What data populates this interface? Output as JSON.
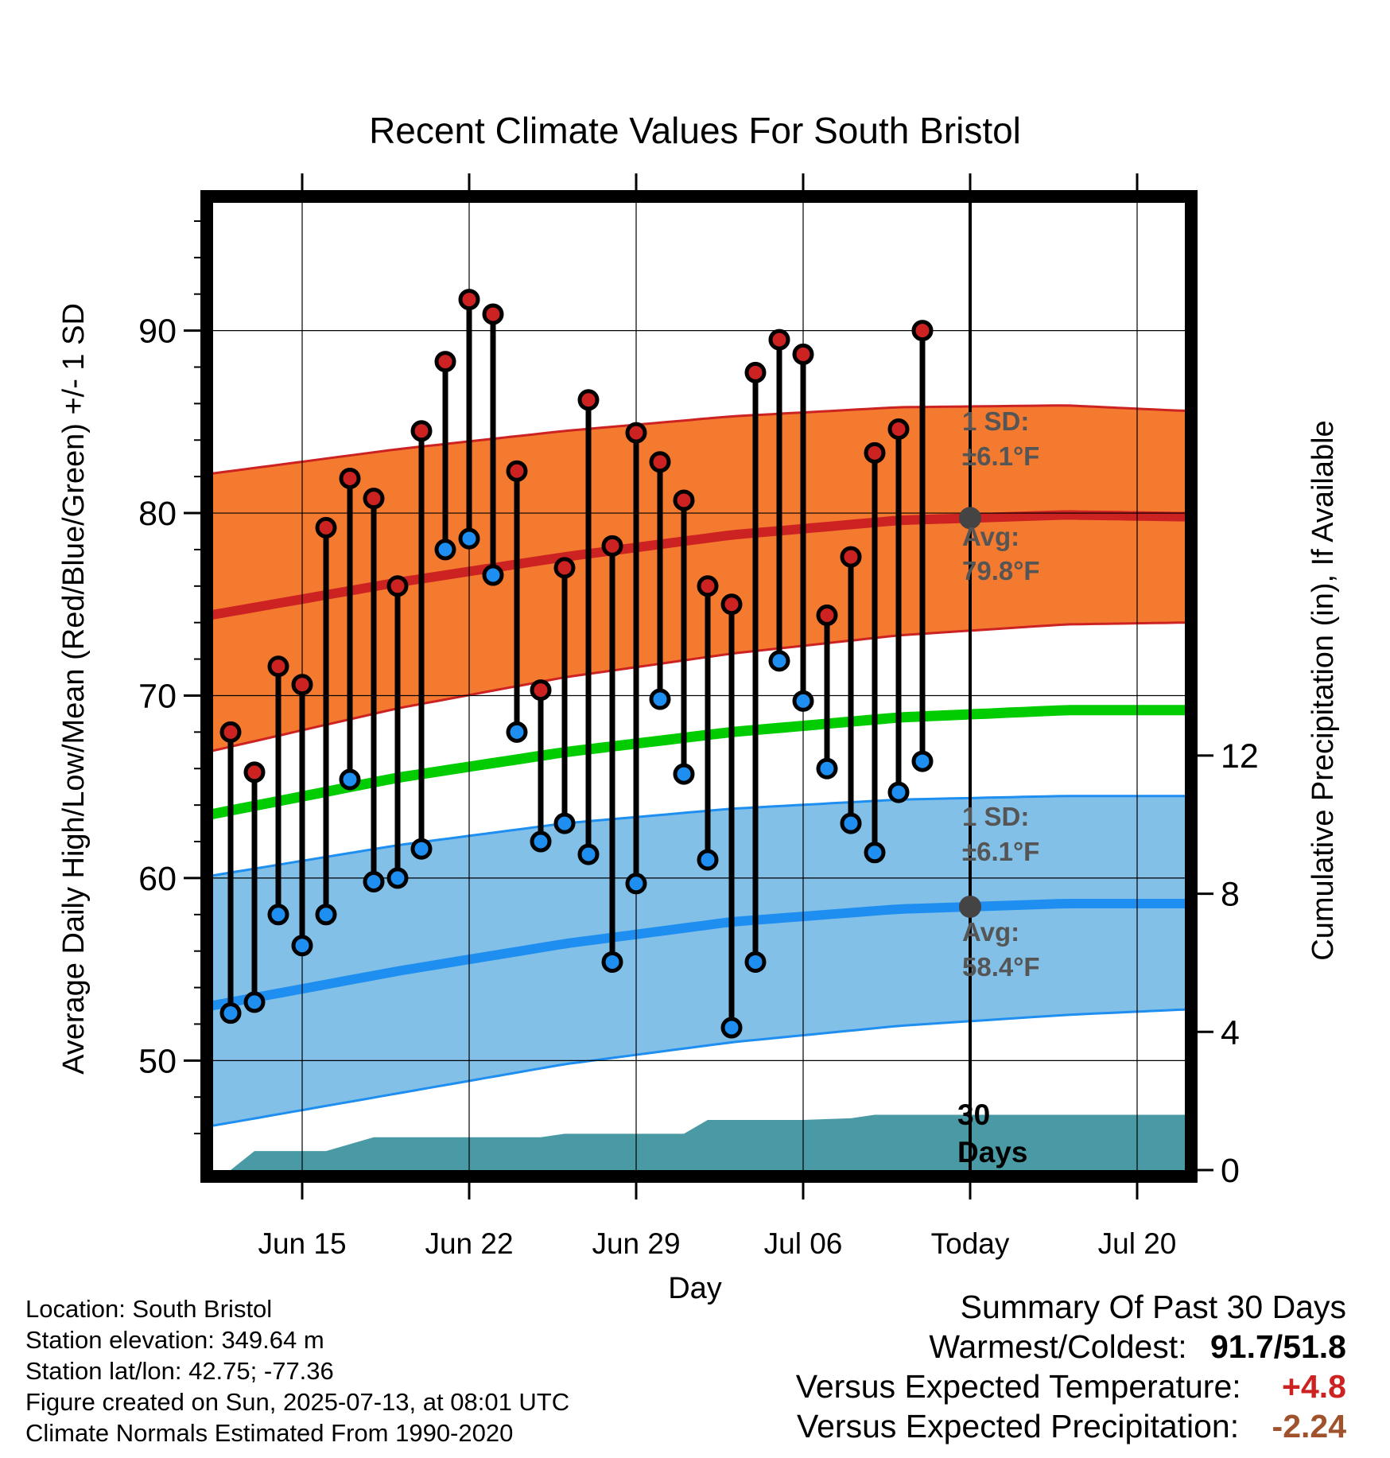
{
  "chart_data": {
    "type": "line",
    "title": "Recent Climate Values For South Bristol",
    "xlabel": "Day",
    "ylabel": "Average Daily High/Low/Mean (Red/Blue/Green) +/- 1 SD",
    "y2label": "Cumulative Precipitation (in), If Available",
    "ylim": [
      44,
      97
    ],
    "y2lim": [
      0,
      28
    ],
    "x_tick_labels": [
      "Jun 15",
      "Jun 22",
      "Jun 29",
      "Jul 06",
      "Today",
      "Jul 20"
    ],
    "x_tick_days": [
      3,
      10,
      17,
      24,
      31,
      38
    ],
    "y_ticks": [
      50,
      60,
      70,
      80,
      90
    ],
    "y2_ticks": [
      0,
      4,
      8,
      12
    ],
    "grid": true,
    "today_day": 31,
    "days_elapsed": 30,
    "colors": {
      "high_band": "#f47a30",
      "high_line": "#cc2222",
      "low_band": "#82c0e8",
      "low_line": "#1e8ff0",
      "mean_line": "#00cc00",
      "precip": "#4a9aa5",
      "high_marker": "#cc2222",
      "low_marker": "#1e8ff0",
      "today_marker": "#444444",
      "annotation": "#555555"
    },
    "daily_days": [
      0,
      1,
      2,
      3,
      4,
      5,
      6,
      7,
      8,
      9,
      10,
      11,
      12,
      13,
      14,
      15,
      16,
      17,
      18,
      19,
      20,
      21,
      22,
      23,
      24,
      25,
      26,
      27,
      28,
      29
    ],
    "daily_high": [
      68.0,
      65.8,
      71.6,
      70.6,
      79.2,
      81.9,
      80.8,
      76.0,
      84.5,
      88.3,
      91.7,
      90.9,
      82.3,
      70.3,
      77.0,
      86.2,
      78.2,
      84.4,
      82.8,
      80.7,
      76.0,
      75.0,
      87.7,
      89.5,
      88.7,
      74.4,
      77.6,
      83.3,
      84.6,
      90.0
    ],
    "daily_low": [
      52.6,
      53.2,
      58.0,
      56.3,
      58.0,
      65.4,
      59.8,
      60.0,
      61.6,
      78.0,
      78.6,
      76.6,
      68.0,
      62.0,
      63.0,
      61.3,
      55.4,
      59.7,
      69.8,
      65.7,
      61.0,
      51.8,
      55.4,
      71.9,
      69.7,
      66.0,
      63.0,
      61.4,
      64.7,
      66.4
    ],
    "normal_days": [
      0,
      7,
      14,
      21,
      28,
      35,
      40
    ],
    "normal_high_avg": [
      74.6,
      76.2,
      77.6,
      78.8,
      79.6,
      79.9,
      79.8
    ],
    "normal_high_plus_sd": [
      82.3,
      83.5,
      84.5,
      85.3,
      85.8,
      85.9,
      85.6
    ],
    "normal_high_minus_sd": [
      67.2,
      69.3,
      71.0,
      72.3,
      73.3,
      73.9,
      74.0
    ],
    "normal_mean": [
      63.7,
      65.5,
      66.9,
      68.0,
      68.8,
      69.2,
      69.2
    ],
    "normal_low_avg": [
      53.2,
      54.9,
      56.4,
      57.6,
      58.3,
      58.6,
      58.6
    ],
    "normal_low_plus_sd": [
      60.3,
      61.8,
      63.0,
      63.8,
      64.3,
      64.5,
      64.5
    ],
    "normal_low_minus_sd": [
      46.6,
      48.2,
      49.8,
      51.0,
      51.9,
      52.5,
      52.8
    ],
    "precip_days": [
      0,
      1,
      4,
      6,
      13,
      14,
      19,
      20,
      24,
      26,
      27,
      40
    ],
    "precip_values": [
      0,
      0.55,
      0.55,
      0.95,
      0.95,
      1.05,
      1.05,
      1.45,
      1.45,
      1.5,
      1.6,
      1.6
    ],
    "annotations": {
      "high_sd_label": "1 SD:",
      "high_sd_value": "±6.1°F",
      "high_avg_label": "Avg:",
      "high_avg_value": "79.8°F",
      "low_sd_label": "1 SD:",
      "low_sd_value": "±6.1°F",
      "low_avg_label": "Avg:",
      "low_avg_value": "58.4°F",
      "days_number": "30",
      "days_word": "Days"
    }
  },
  "info": {
    "location": "Location: South Bristol",
    "elevation": "Station elevation: 349.64 m",
    "latlon": "Station lat/lon: 42.75; -77.36",
    "created": "Figure created on Sun, 2025-07-13, at 08:01 UTC",
    "normals": "Climate Normals Estimated From 1990-2020"
  },
  "summary": {
    "title": "Summary Of Past 30 Days",
    "warm_cold_label": "Warmest/Coldest:",
    "warm_cold_value": "91.7/51.8",
    "temp_label": "Versus Expected Temperature:",
    "temp_value": "+4.8",
    "temp_color": "#cc2222",
    "precip_label": "Versus Expected Precipitation:",
    "precip_value": "-2.24",
    "precip_color": "#a0522d"
  }
}
